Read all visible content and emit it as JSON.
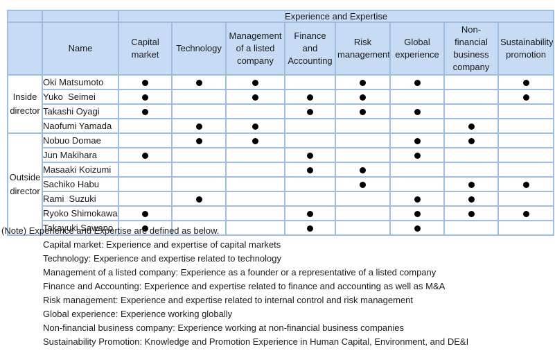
{
  "table": {
    "title": "Experience and Expertise",
    "name_header": "Name",
    "dot_symbol": "●",
    "columns": [
      "Capital market",
      "Technology",
      "Management of a listed company",
      "Finance and Accounting",
      "Risk management",
      "Global experience",
      "Non-financial business company",
      "Sustainability promotion"
    ],
    "groups": [
      {
        "label": "Inside director",
        "members": [
          {
            "name": "Oki Matsumoto",
            "skills": [
              1,
              1,
              1,
              0,
              1,
              1,
              0,
              1
            ]
          },
          {
            "name": "Yuko  Seimei",
            "skills": [
              1,
              0,
              1,
              1,
              1,
              0,
              0,
              1
            ]
          },
          {
            "name": "Takashi Oyagi",
            "skills": [
              1,
              0,
              0,
              1,
              1,
              1,
              0,
              0
            ]
          },
          {
            "name": "Naofumi Yamada",
            "skills": [
              0,
              1,
              1,
              0,
              0,
              0,
              1,
              0
            ]
          }
        ]
      },
      {
        "label": "Outside director",
        "members": [
          {
            "name": "Nobuo Domae",
            "skills": [
              0,
              1,
              1,
              0,
              0,
              1,
              1,
              0
            ]
          },
          {
            "name": "Jun Makihara",
            "skills": [
              1,
              0,
              0,
              1,
              0,
              1,
              0,
              0
            ]
          },
          {
            "name": "Masaaki Koizumi",
            "skills": [
              0,
              0,
              0,
              1,
              1,
              0,
              0,
              0
            ]
          },
          {
            "name": "Sachiko Habu",
            "skills": [
              0,
              0,
              0,
              0,
              1,
              0,
              1,
              1
            ]
          },
          {
            "name": "Rami  Suzuki",
            "skills": [
              0,
              1,
              0,
              0,
              0,
              1,
              1,
              0
            ]
          },
          {
            "name": "Ryoko Shimokawa",
            "skills": [
              1,
              0,
              0,
              1,
              0,
              1,
              1,
              1
            ]
          },
          {
            "name": "Takayuki Sawano",
            "skills": [
              1,
              0,
              0,
              1,
              0,
              1,
              0,
              0
            ]
          }
        ]
      }
    ]
  },
  "notes": {
    "intro": "(Note) Experience and Expertise are defined as below.",
    "lines": [
      "Capital market: Experience and expertise of capital markets",
      "Technology: Experience and expertise related to technology",
      "Management of a listed company: Experience as a founder or a representative of a listed company",
      "Finance and Accounting: Experience and expertise related to finance and accounting as well as M&A",
      "Risk management: Experience and expertise related to internal control and risk management",
      "Global experience: Experience working globally",
      "Non-financial business company: Experience working at non-financial business companies",
      "Sustainability Promotion: Knowledge and Promotion Experience in Human Capital, Environment, and DE&I"
    ]
  },
  "colors": {
    "header_fill": "#C7DCF4",
    "border": "#9FBDDF",
    "dot": "#000000",
    "text": "#1A1A1A",
    "background": "#FFFFFF"
  }
}
